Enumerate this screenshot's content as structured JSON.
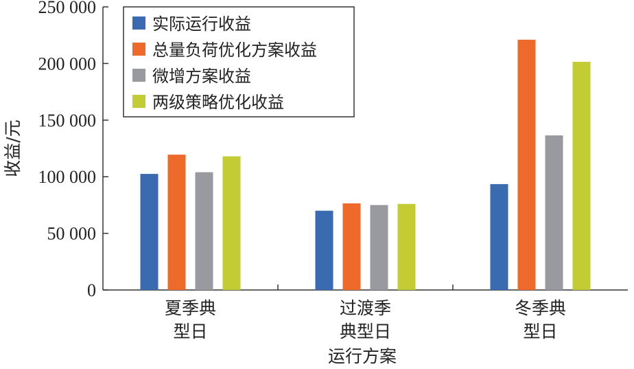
{
  "chart_data": {
    "type": "bar",
    "categories": [
      [
        "夏季典",
        "型日"
      ],
      [
        "过渡季",
        "典型日"
      ],
      [
        "冬季典",
        "型日"
      ]
    ],
    "series": [
      {
        "name": "实际运行收益",
        "color": "#3a6ab0",
        "values": [
          102500,
          70000,
          93500
        ]
      },
      {
        "name": "总量负荷优化方案收益",
        "color": "#ee6a2a",
        "values": [
          119500,
          76500,
          221000
        ]
      },
      {
        "name": "微增方案收益",
        "color": "#999aa0",
        "values": [
          104000,
          75000,
          136500
        ]
      },
      {
        "name": "两级策略优化收益",
        "color": "#c3cc33",
        "values": [
          118000,
          76000,
          201500
        ]
      }
    ],
    "xlabel": "运行方案",
    "ylabel": "收益/元",
    "ylim": [
      0,
      250000
    ],
    "yticks": [
      0,
      50000,
      100000,
      150000,
      200000,
      250000
    ],
    "ytick_labels": [
      "0",
      "50 000",
      "100 000",
      "150 000",
      "200 000",
      "250 000"
    ],
    "legend_position": "top-left"
  }
}
